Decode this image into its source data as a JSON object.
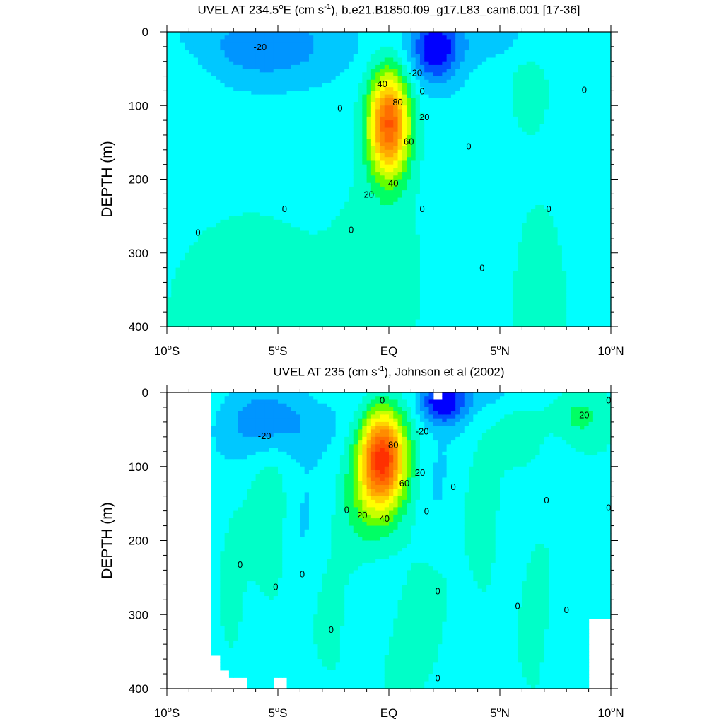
{
  "chart_data": [
    {
      "type": "heatmap",
      "subtype": "filled-contour",
      "title_var": "UVEL AT 234.5",
      "title_deg": "o",
      "title_e": "E (cm s",
      "title_exp": "-1",
      "title_rest": "), b.e21.B1850.f09_g17.L83_cam6.001 [17-36]",
      "ylabel": "DEPTH (m)",
      "xlim": [
        -10,
        10
      ],
      "ylim": [
        0,
        400
      ],
      "y_inverted": true,
      "xticks": [
        {
          "v": -10,
          "num": "10",
          "hemi": "S"
        },
        {
          "v": -5,
          "num": "5",
          "hemi": "S"
        },
        {
          "v": 0,
          "num": "EQ",
          "hemi": ""
        },
        {
          "v": 5,
          "num": "5",
          "hemi": "N"
        },
        {
          "v": 10,
          "num": "10",
          "hemi": "N"
        }
      ],
      "yticks": [
        0,
        100,
        200,
        300,
        400
      ],
      "contour_interval": 10,
      "contour_labels": [
        {
          "x": -5.8,
          "y": 20,
          "text": "-20"
        },
        {
          "x": 1.2,
          "y": 55,
          "text": "-20"
        },
        {
          "x": 1.5,
          "y": 80,
          "text": "0"
        },
        {
          "x": -2.2,
          "y": 103,
          "text": "0"
        },
        {
          "x": -0.3,
          "y": 70,
          "text": "40"
        },
        {
          "x": 0.4,
          "y": 95,
          "text": "80"
        },
        {
          "x": 1.6,
          "y": 115,
          "text": "20"
        },
        {
          "x": 0.9,
          "y": 148,
          "text": "60"
        },
        {
          "x": 0.2,
          "y": 205,
          "text": "40"
        },
        {
          "x": -0.9,
          "y": 220,
          "text": "20"
        },
        {
          "x": -8.6,
          "y": 272,
          "text": "0"
        },
        {
          "x": -4.7,
          "y": 240,
          "text": "0"
        },
        {
          "x": -1.7,
          "y": 268,
          "text": "0"
        },
        {
          "x": 1.5,
          "y": 240,
          "text": "0"
        },
        {
          "x": 3.6,
          "y": 155,
          "text": "0"
        },
        {
          "x": 4.2,
          "y": 320,
          "text": "0"
        },
        {
          "x": 7.2,
          "y": 240,
          "text": "0"
        },
        {
          "x": 8.8,
          "y": 78,
          "text": "0"
        }
      ],
      "features": [
        {
          "kind": "undercurrent_core",
          "x": 0,
          "y": 120,
          "max": 90
        },
        {
          "kind": "westward_surface",
          "x": 2.2,
          "y": 20,
          "min": -40
        },
        {
          "kind": "eastward_offeq",
          "x": 6.3,
          "y": 65,
          "max": 10
        }
      ]
    },
    {
      "type": "heatmap",
      "subtype": "filled-contour",
      "title_main": "UVEL AT 235 (cm s",
      "title_exp": "-1",
      "title_rest": "), Johnson et al (2002)",
      "ylabel": "DEPTH (m)",
      "xlim": [
        -10,
        10
      ],
      "ylim": [
        0,
        400
      ],
      "y_inverted": true,
      "xticks": [
        {
          "v": -10,
          "num": "10",
          "hemi": "S"
        },
        {
          "v": -5,
          "num": "5",
          "hemi": "S"
        },
        {
          "v": 0,
          "num": "EQ",
          "hemi": ""
        },
        {
          "v": 5,
          "num": "5",
          "hemi": "N"
        },
        {
          "v": 10,
          "num": "10",
          "hemi": "N"
        }
      ],
      "yticks": [
        0,
        100,
        200,
        300,
        400
      ],
      "contour_interval": 10,
      "contour_labels": [
        {
          "x": -0.3,
          "y": 10,
          "text": "0"
        },
        {
          "x": -5.6,
          "y": 58,
          "text": "-20"
        },
        {
          "x": 1.5,
          "y": 52,
          "text": "-20"
        },
        {
          "x": 0.2,
          "y": 70,
          "text": "80"
        },
        {
          "x": 1.4,
          "y": 108,
          "text": "20"
        },
        {
          "x": 0.7,
          "y": 122,
          "text": "60"
        },
        {
          "x": -0.2,
          "y": 170,
          "text": "40"
        },
        {
          "x": -1.2,
          "y": 165,
          "text": "20"
        },
        {
          "x": 8.8,
          "y": 30,
          "text": "20"
        },
        {
          "x": 9.9,
          "y": 10,
          "text": "0"
        },
        {
          "x": 2.9,
          "y": 127,
          "text": "0"
        },
        {
          "x": 1.7,
          "y": 160,
          "text": "0"
        },
        {
          "x": -1.9,
          "y": 158,
          "text": "0"
        },
        {
          "x": 7.1,
          "y": 145,
          "text": "0"
        },
        {
          "x": 9.9,
          "y": 155,
          "text": "0"
        },
        {
          "x": -6.7,
          "y": 232,
          "text": "0"
        },
        {
          "x": -5.1,
          "y": 262,
          "text": "0"
        },
        {
          "x": -3.9,
          "y": 245,
          "text": "0"
        },
        {
          "x": 2.2,
          "y": 268,
          "text": "0"
        },
        {
          "x": 5.8,
          "y": 288,
          "text": "0"
        },
        {
          "x": 8.0,
          "y": 293,
          "text": "0"
        },
        {
          "x": -2.6,
          "y": 320,
          "text": "0"
        },
        {
          "x": 2.2,
          "y": 385,
          "text": "0"
        }
      ],
      "features": [
        {
          "kind": "undercurrent_core",
          "x": -0.2,
          "y": 85,
          "max": 90
        },
        {
          "kind": "westward_surface",
          "x": 2.4,
          "y": 15,
          "min": -40
        },
        {
          "kind": "eastward_offeq",
          "x": 8.5,
          "y": 30,
          "max": 20
        }
      ]
    }
  ],
  "colors": {
    "background": "#00FFFF",
    "levels": [
      "#0000FF",
      "#0050FF",
      "#0095FF",
      "#00C8FF",
      "#00FFFF",
      "#00FFC8",
      "#00FF64",
      "#64FF00",
      "#C8FF00",
      "#FFFF00",
      "#FFD200",
      "#FFAA00",
      "#FF8C00",
      "#FF6E00",
      "#FF5000",
      "#FF3000",
      "#FF0000",
      "#E00000"
    ]
  }
}
